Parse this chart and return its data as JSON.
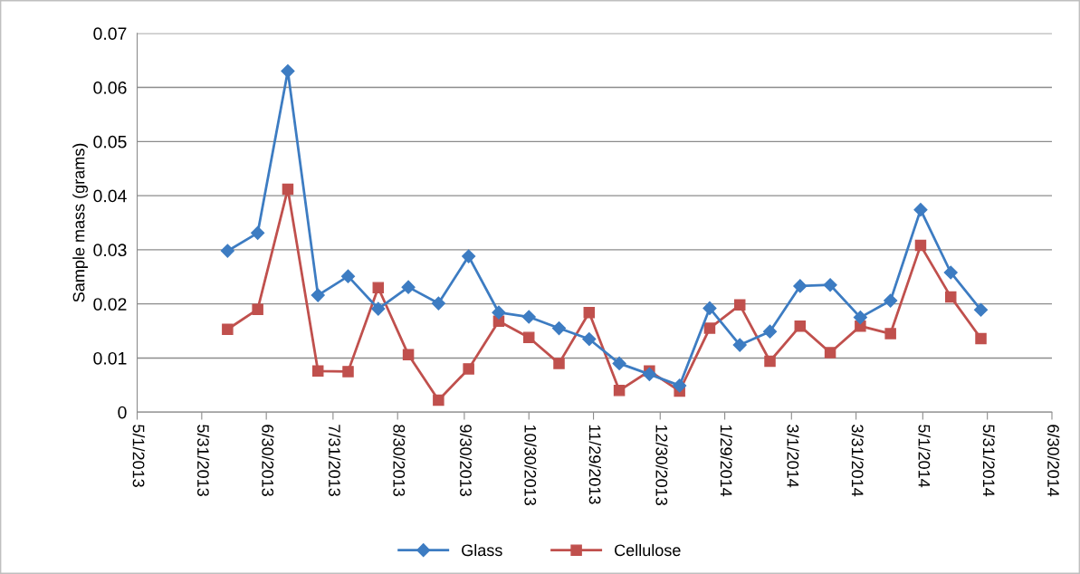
{
  "chart_data": {
    "type": "line",
    "ylabel": "Sample mass (grams)",
    "x": [
      "2013-06-12",
      "2013-06-26",
      "2013-07-10",
      "2013-07-24",
      "2013-08-07",
      "2013-08-21",
      "2013-09-04",
      "2013-09-18",
      "2013-10-02",
      "2013-10-16",
      "2013-10-30",
      "2013-11-13",
      "2013-11-27",
      "2013-12-11",
      "2013-12-25",
      "2014-01-08",
      "2014-01-22",
      "2014-02-05",
      "2014-02-19",
      "2014-03-05",
      "2014-03-19",
      "2014-04-02",
      "2014-04-16",
      "2014-04-30",
      "2014-05-14",
      "2014-05-28"
    ],
    "series": [
      {
        "name": "Glass",
        "color": "#3d7cc2",
        "marker": "diamond",
        "values": [
          0.0298,
          0.0331,
          0.063,
          0.0216,
          0.0251,
          0.0191,
          0.0231,
          0.0201,
          0.0288,
          0.0184,
          0.0176,
          0.0155,
          0.0135,
          0.009,
          0.007,
          0.0049,
          0.0192,
          0.0124,
          0.0149,
          0.0233,
          0.0235,
          0.0175,
          0.0206,
          0.0374,
          0.0258,
          0.0189
        ]
      },
      {
        "name": "Cellulose",
        "color": "#c0504d",
        "marker": "square",
        "values": [
          0.0153,
          0.019,
          0.0412,
          0.0076,
          0.0075,
          0.023,
          0.0106,
          0.0022,
          0.008,
          0.0168,
          0.0138,
          0.009,
          0.0184,
          0.004,
          0.0076,
          0.0039,
          0.0155,
          0.0198,
          0.0094,
          0.0159,
          0.011,
          0.0159,
          0.0145,
          0.0308,
          0.0213,
          0.0136
        ]
      }
    ],
    "xlim": [
      "2013-05-01",
      "2014-06-30"
    ],
    "xticks": [
      {
        "value": "2013-05-01",
        "label": "5/1/2013"
      },
      {
        "value": "2013-05-31",
        "label": "5/31/2013"
      },
      {
        "value": "2013-06-30",
        "label": "6/30/2013"
      },
      {
        "value": "2013-07-31",
        "label": "7/31/2013"
      },
      {
        "value": "2013-08-30",
        "label": "8/30/2013"
      },
      {
        "value": "2013-09-30",
        "label": "9/30/2013"
      },
      {
        "value": "2013-10-30",
        "label": "10/30/2013"
      },
      {
        "value": "2013-11-29",
        "label": "11/29/2013"
      },
      {
        "value": "2013-12-30",
        "label": "12/30/2013"
      },
      {
        "value": "2014-01-29",
        "label": "1/29/2014"
      },
      {
        "value": "2014-03-01",
        "label": "3/1/2014"
      },
      {
        "value": "2014-03-31",
        "label": "3/31/2014"
      },
      {
        "value": "2014-05-01",
        "label": "5/1/2014"
      },
      {
        "value": "2014-05-31",
        "label": "5/31/2014"
      },
      {
        "value": "2014-06-30",
        "label": "6/30/2014"
      }
    ],
    "ylim": [
      0,
      0.07
    ],
    "yticks": [
      0,
      0.01,
      0.02,
      0.03,
      0.04,
      0.05,
      0.06,
      0.07
    ],
    "grid": "y",
    "legend": "bottom",
    "line_style": "solid"
  }
}
